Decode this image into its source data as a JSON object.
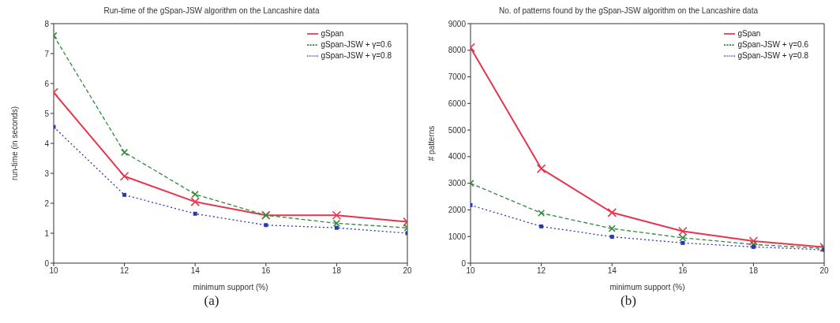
{
  "chart_data": [
    {
      "type": "line",
      "title": "Run-time of the gSpan-JSW algorithm on the Lancashire data",
      "xlabel": "minimum support (%)",
      "ylabel": "run-time (in seconds)",
      "annotations": [
        "(a)"
      ],
      "x": [
        10,
        12,
        14,
        16,
        18,
        20
      ],
      "series": [
        {
          "name": "gSpan",
          "color": "#e8354f",
          "values": [
            5.7,
            2.9,
            2.05,
            1.6,
            1.6,
            1.38
          ],
          "marker": "cross",
          "line_style": "solid"
        },
        {
          "name": "gSpan-JSW + γ=0.6",
          "color": "#2e8b3a",
          "values": [
            7.6,
            3.7,
            2.3,
            1.6,
            1.33,
            1.18
          ],
          "marker": "cross",
          "line_style": "dashed"
        },
        {
          "name": "gSpan-JSW + γ=0.8",
          "color": "#2b35b8",
          "values": [
            4.55,
            2.28,
            1.65,
            1.27,
            1.18,
            1.0
          ],
          "marker": "square",
          "line_style": "dotted"
        }
      ],
      "xlim": [
        10,
        20
      ],
      "xticks": [
        10,
        12,
        14,
        16,
        18,
        20
      ],
      "ylim": [
        0,
        8
      ],
      "yticks": [
        0,
        1,
        2,
        3,
        4,
        5,
        6,
        7,
        8
      ],
      "grid": false,
      "legend": "top right"
    },
    {
      "type": "line",
      "title": "No. of patterns found by the gSpan-JSW algorithm on the Lancashire data",
      "xlabel": "minimum support (%)",
      "ylabel": "# patterns",
      "annotations": [
        "(b)"
      ],
      "x": [
        10,
        12,
        14,
        16,
        18,
        20
      ],
      "series": [
        {
          "name": "gSpan",
          "color": "#e8354f",
          "values": [
            8100,
            3550,
            1900,
            1200,
            830,
            600
          ],
          "marker": "cross",
          "line_style": "solid"
        },
        {
          "name": "gSpan-JSW + γ=0.6",
          "color": "#2e8b3a",
          "values": [
            3000,
            1880,
            1300,
            950,
            700,
            550
          ],
          "marker": "cross",
          "line_style": "dashed"
        },
        {
          "name": "gSpan-JSW + γ=0.8",
          "color": "#2b35b8",
          "values": [
            2180,
            1380,
            990,
            760,
            610,
            500
          ],
          "marker": "square",
          "line_style": "dotted"
        }
      ],
      "xlim": [
        10,
        20
      ],
      "xticks": [
        10,
        12,
        14,
        16,
        18,
        20
      ],
      "ylim": [
        0,
        9000
      ],
      "yticks": [
        0,
        1000,
        2000,
        3000,
        4000,
        5000,
        6000,
        7000,
        8000,
        9000
      ],
      "grid": false,
      "legend": "top right"
    }
  ]
}
